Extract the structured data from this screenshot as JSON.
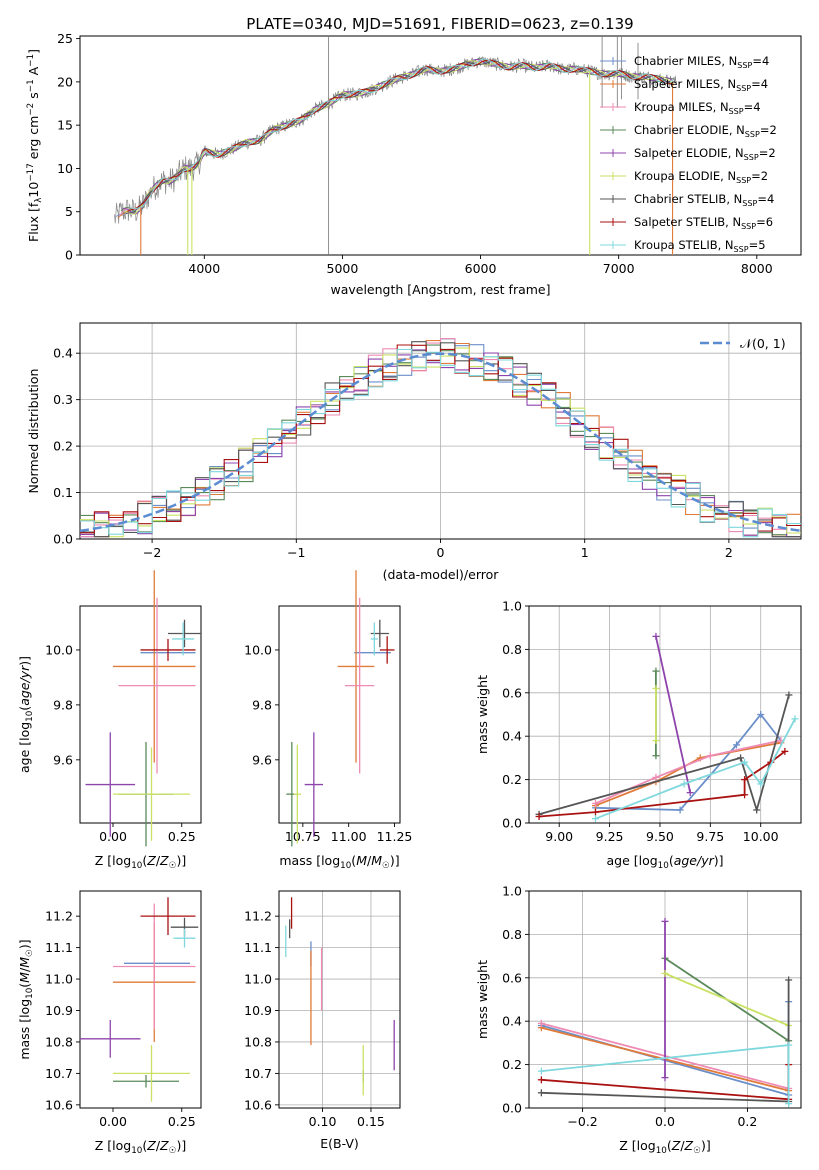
{
  "title": "PLATE=0340, MJD=51691, FIBERID=0623, z=0.139",
  "colors": [
    "#6b8fc9",
    "#e07b39",
    "#ee8bb4",
    "#5a8a5a",
    "#8e44ad",
    "#c9e265",
    "#555555",
    "#aa1111",
    "#7fd8dd"
  ],
  "legend": {
    "entries": [
      {
        "name": "Chabrier MILES, N",
        "sub": "SSP",
        "tail": "=4",
        "color": "#6b8fc9"
      },
      {
        "name": "Salpeter MILES, N",
        "sub": "SSP",
        "tail": "=4",
        "color": "#e07b39"
      },
      {
        "name": "Kroupa MILES, N",
        "sub": "SSP",
        "tail": "=4",
        "color": "#ee8bb4"
      },
      {
        "name": "Chabrier ELODIE, N",
        "sub": "SSP",
        "tail": "=2",
        "color": "#5a8a5a"
      },
      {
        "name": "Salpeter ELODIE, N",
        "sub": "SSP",
        "tail": "=2",
        "color": "#8e44ad"
      },
      {
        "name": "Kroupa ELODIE, N",
        "sub": "SSP",
        "tail": "=2",
        "color": "#c9e265"
      },
      {
        "name": "Chabrier STELIB, N",
        "sub": "SSP",
        "tail": "=4",
        "color": "#555555"
      },
      {
        "name": "Salpeter STELIB, N",
        "sub": "SSP",
        "tail": "=6",
        "color": "#aa1111"
      },
      {
        "name": "Kroupa STELIB, N",
        "sub": "SSP",
        "tail": "=5",
        "color": "#7fd8dd"
      }
    ],
    "gauss": "𝒩(0, 1)"
  },
  "chart_data": [
    {
      "id": "spectrum",
      "type": "line",
      "xlabel": "wavelength [Angstrom, rest frame]",
      "ylabel": "Flux [f",
      "ylabel_parts": [
        "Flux [f",
        "λ",
        "10",
        "−17",
        " erg cm",
        "−2",
        " s",
        "−1",
        " A",
        "−1",
        "]"
      ],
      "xlim": [
        3100,
        8320
      ],
      "ylim": [
        0,
        25.3
      ],
      "xticks": [
        4000,
        5000,
        6000,
        7000,
        8000
      ],
      "yticks": [
        0,
        5,
        10,
        15,
        20,
        25
      ],
      "grid": false,
      "data_x": [
        3350,
        3400,
        3450,
        3500,
        3550,
        3600,
        3650,
        3700,
        3750,
        3800,
        3850,
        3900,
        3950,
        4000,
        4100,
        4200,
        4300,
        4400,
        4500,
        4600,
        4700,
        4800,
        4900,
        5000,
        5100,
        5200,
        5300,
        5400,
        5500,
        5600,
        5700,
        5800,
        5900,
        6000,
        6100,
        6200,
        6300,
        6400,
        6500,
        6600,
        6700,
        6800,
        6900,
        7000,
        7100,
        7200,
        7300,
        7400
      ],
      "data_y": [
        4.2,
        5.0,
        5.2,
        5.0,
        5.6,
        7.0,
        8.0,
        8.6,
        8.5,
        9.0,
        10.0,
        10.0,
        10.4,
        12.0,
        11.6,
        12.2,
        13.0,
        13.2,
        14.5,
        15.0,
        15.6,
        16.8,
        17.5,
        18.5,
        18.6,
        19.0,
        19.7,
        20.4,
        20.8,
        21.5,
        21.2,
        21.5,
        22.0,
        22.4,
        22.1,
        21.7,
        21.9,
        21.6,
        21.9,
        21.4,
        21.5,
        21.2,
        20.9,
        21.0,
        20.6,
        20.6,
        20.3,
        20.0
      ],
      "drops_x": [
        3540,
        3880,
        3910,
        6790,
        7390
      ],
      "tall_spikes": [
        [
          4900,
          0,
          25.3
        ],
        [
          6880,
          17,
          25.3
        ],
        [
          6990,
          17,
          25.3
        ],
        [
          7020,
          18,
          25.3
        ],
        [
          7140,
          18,
          24.5
        ]
      ]
    },
    {
      "id": "residuals",
      "type": "histogram",
      "xlabel": "(data-model)/error",
      "ylabel": "Normed distribution",
      "xlim": [
        -2.5,
        2.5
      ],
      "ylim": [
        0,
        0.465
      ],
      "xticks": [
        -2,
        -1,
        0,
        1,
        2
      ],
      "yticks": [
        0.0,
        0.1,
        0.2,
        0.3,
        0.4
      ],
      "grid": true,
      "bin_width": 0.1,
      "gaussian": {
        "mean": 0,
        "sigma": 1,
        "name": "𝒩(0, 1)"
      }
    },
    {
      "id": "Z_vs_age",
      "type": "scatter",
      "xlabel": "Z [log10(Z/Z☉)]",
      "ylabel": "age  [log10(age/yr)]",
      "xlim": [
        -0.12,
        0.32
      ],
      "ylim": [
        9.37,
        10.16
      ],
      "xticks": [
        0.0,
        0.25
      ],
      "yticks": [
        9.6,
        9.8,
        10.0
      ],
      "grid": false,
      "points": [
        {
          "x": 0.2,
          "y": 9.99,
          "ex": 0.1,
          "ey": 0.0
        },
        {
          "x": 0.15,
          "y": 9.94,
          "ex": 0.15,
          "ey": 0.35
        },
        {
          "x": 0.16,
          "y": 9.87,
          "ex": 0.14,
          "ey": 0.32
        },
        {
          "x": 0.12,
          "y": 9.475,
          "ex": 0.1,
          "ey": 0.19
        },
        {
          "x": -0.01,
          "y": 9.51,
          "ex": 0.09,
          "ey": 0.19
        },
        {
          "x": 0.14,
          "y": 9.475,
          "ex": 0.14,
          "ey": 0.17
        },
        {
          "x": 0.26,
          "y": 10.06,
          "ex": 0.06,
          "ey": 0.05
        },
        {
          "x": 0.2,
          "y": 10.0,
          "ex": 0.1,
          "ey": 0.04
        },
        {
          "x": 0.255,
          "y": 10.04,
          "ex": 0.04,
          "ey": 0.06
        }
      ]
    },
    {
      "id": "mass_vs_age",
      "type": "scatter",
      "xlabel": "mass [log10(M/M☉)]",
      "ylabel": "",
      "xlim": [
        10.62,
        11.28
      ],
      "ylim": [
        9.37,
        10.16
      ],
      "xticks": [
        10.75,
        11.0,
        11.25
      ],
      "yticks": [
        9.6,
        9.8,
        10.0
      ],
      "grid": false,
      "points": [
        {
          "x": 11.13,
          "y": 9.99,
          "ex": 0.1,
          "ey": 0.0
        },
        {
          "x": 11.04,
          "y": 9.94,
          "ex": 0.1,
          "ey": 0.35
        },
        {
          "x": 11.06,
          "y": 9.87,
          "ex": 0.08,
          "ey": 0.32
        },
        {
          "x": 10.69,
          "y": 9.475,
          "ex": 0.03,
          "ey": 0.19
        },
        {
          "x": 10.81,
          "y": 9.51,
          "ex": 0.05,
          "ey": 0.19
        },
        {
          "x": 10.72,
          "y": 9.475,
          "ex": 0.02,
          "ey": 0.18
        },
        {
          "x": 11.17,
          "y": 10.06,
          "ex": 0.05,
          "ey": 0.05
        },
        {
          "x": 11.21,
          "y": 10.0,
          "ex": 0.04,
          "ey": 0.05
        },
        {
          "x": 11.14,
          "y": 10.04,
          "ex": 0.02,
          "ey": 0.06
        }
      ]
    },
    {
      "id": "age_weights",
      "type": "line",
      "xlabel": "age  [log10(age/yr)]",
      "ylabel": "mass weight",
      "xlim": [
        8.85,
        10.2
      ],
      "ylim": [
        0.0,
        1.0
      ],
      "xticks": [
        9.0,
        9.25,
        9.5,
        9.75,
        10.0
      ],
      "yticks": [
        0.0,
        0.2,
        0.4,
        0.6,
        0.8,
        1.0
      ],
      "grid": true,
      "series": [
        {
          "x": [
            9.18,
            9.6,
            9.88,
            10.0,
            10.1
          ],
          "y": [
            0.07,
            0.06,
            0.36,
            0.5,
            0.38
          ]
        },
        {
          "x": [
            9.18,
            9.48,
            9.7,
            10.1
          ],
          "y": [
            0.08,
            0.19,
            0.3,
            0.37
          ]
        },
        {
          "x": [
            9.18,
            9.48,
            9.75,
            10.1
          ],
          "y": [
            0.09,
            0.21,
            0.31,
            0.38
          ]
        },
        {
          "x": [
            9.48,
            9.48
          ],
          "y": [
            0.7,
            0.31
          ]
        },
        {
          "x": [
            9.48,
            9.65
          ],
          "y": [
            0.86,
            0.14
          ]
        },
        {
          "x": [
            9.48,
            9.48
          ],
          "y": [
            0.62,
            0.38
          ]
        },
        {
          "x": [
            8.9,
            9.9,
            9.98,
            10.14
          ],
          "y": [
            0.04,
            0.3,
            0.06,
            0.59
          ]
        },
        {
          "x": [
            8.9,
            9.18,
            9.92,
            9.92,
            10.05,
            10.12
          ],
          "y": [
            0.03,
            0.05,
            0.13,
            0.2,
            0.28,
            0.33
          ]
        },
        {
          "x": [
            9.18,
            9.62,
            9.92,
            10.0,
            10.17
          ],
          "y": [
            0.02,
            0.18,
            0.28,
            0.18,
            0.48
          ]
        }
      ]
    },
    {
      "id": "Z_vs_mass",
      "type": "scatter",
      "xlabel": "Z [log10(Z/Z☉)]",
      "ylabel": "mass [log10(M/M☉)]",
      "xlim": [
        -0.12,
        0.32
      ],
      "ylim": [
        10.59,
        11.28
      ],
      "xticks": [
        0.0,
        0.25
      ],
      "yticks": [
        10.6,
        10.7,
        10.8,
        10.9,
        11.0,
        11.1,
        11.2
      ],
      "grid": false,
      "points": [
        {
          "x": 0.16,
          "y": 11.05,
          "ex": 0.12,
          "ey": 0.0
        },
        {
          "x": 0.15,
          "y": 10.99,
          "ex": 0.15,
          "ey": 0.19
        },
        {
          "x": 0.15,
          "y": 11.04,
          "ex": 0.15,
          "ey": 0.2
        },
        {
          "x": 0.12,
          "y": 10.675,
          "ex": 0.12,
          "ey": 0.02
        },
        {
          "x": -0.01,
          "y": 10.81,
          "ex": 0.11,
          "ey": 0.06
        },
        {
          "x": 0.14,
          "y": 10.7,
          "ex": 0.14,
          "ey": 0.09
        },
        {
          "x": 0.26,
          "y": 11.165,
          "ex": 0.05,
          "ey": 0.03
        },
        {
          "x": 0.2,
          "y": 11.2,
          "ex": 0.1,
          "ey": 0.06
        },
        {
          "x": 0.26,
          "y": 11.13,
          "ex": 0.04,
          "ey": 0.03
        }
      ]
    },
    {
      "id": "EBV_vs_mass",
      "type": "scatter",
      "xlabel": "E(B-V)",
      "ylabel": "",
      "xlim": [
        0.055,
        0.18
      ],
      "ylim": [
        10.59,
        11.28
      ],
      "xticks": [
        0.1,
        0.15
      ],
      "yticks": [
        10.6,
        10.7,
        10.8,
        10.9,
        11.0,
        11.1,
        11.2
      ],
      "grid": true,
      "points": [
        {
          "x": 0.088,
          "y": 11.08,
          "ex": 0,
          "ey": 0.04
        },
        {
          "x": 0.088,
          "y": 10.94,
          "ex": 0,
          "ey": 0.15
        },
        {
          "x": 0.099,
          "y": 11.0,
          "ex": 0,
          "ey": 0.1
        },
        {
          "x": 0.142,
          "y": 10.69,
          "ex": 0,
          "ey": 0.02
        },
        {
          "x": 0.174,
          "y": 10.79,
          "ex": 0,
          "ey": 0.08
        },
        {
          "x": 0.142,
          "y": 10.71,
          "ex": 0,
          "ey": 0.08
        },
        {
          "x": 0.066,
          "y": 11.16,
          "ex": 0,
          "ey": 0.03
        },
        {
          "x": 0.068,
          "y": 11.21,
          "ex": 0,
          "ey": 0.05
        },
        {
          "x": 0.062,
          "y": 11.12,
          "ex": 0,
          "ey": 0.05
        }
      ]
    },
    {
      "id": "Z_weights",
      "type": "line",
      "xlabel": "Z [log10(Z/Z☉)]",
      "ylabel": "mass weight",
      "xlim": [
        -0.33,
        0.33
      ],
      "ylim": [
        0.0,
        1.0
      ],
      "xticks": [
        -0.2,
        0.0,
        0.2
      ],
      "yticks": [
        0.0,
        0.2,
        0.4,
        0.6,
        0.8,
        1.0
      ],
      "grid": true,
      "series": [
        {
          "x": [
            -0.3,
            0.3,
            0.3
          ],
          "y": [
            0.38,
            0.06,
            0.49
          ]
        },
        {
          "x": [
            -0.3,
            0.3
          ],
          "y": [
            0.37,
            0.08
          ]
        },
        {
          "x": [
            -0.3,
            0.3
          ],
          "y": [
            0.39,
            0.09
          ]
        },
        {
          "x": [
            0.0,
            0.3
          ],
          "y": [
            0.69,
            0.31
          ]
        },
        {
          "x": [
            0.0,
            0.0
          ],
          "y": [
            0.86,
            0.14
          ]
        },
        {
          "x": [
            0.0,
            0.3
          ],
          "y": [
            0.62,
            0.38
          ]
        },
        {
          "x": [
            -0.3,
            0.3,
            0.3
          ],
          "y": [
            0.07,
            0.03,
            0.59
          ]
        },
        {
          "x": [
            -0.3,
            0.3,
            0.3
          ],
          "y": [
            0.13,
            0.04,
            0.2
          ]
        },
        {
          "x": [
            -0.3,
            0.3,
            0.3
          ],
          "y": [
            0.17,
            0.29,
            0.02
          ]
        }
      ]
    }
  ]
}
